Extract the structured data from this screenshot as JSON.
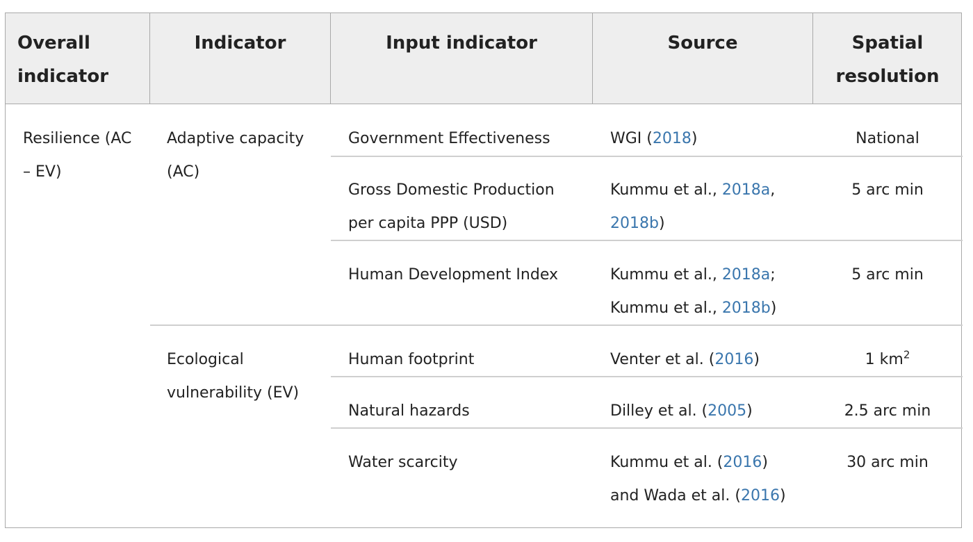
{
  "table": {
    "headers": {
      "overall_line1": "Overall",
      "overall_line2": "indicator",
      "indicator": "Indicator",
      "input_indicator": "Input indicator",
      "source": "Source",
      "spatial_line1": "Spatial",
      "spatial_line2": "resolution"
    },
    "overall": {
      "line1": "Resilience (AC",
      "line2": "– EV)"
    },
    "indicators": {
      "ac_line1": "Adaptive capacity",
      "ac_line2": "(AC)",
      "ev_line1": "Ecological",
      "ev_line2": "vulnerability (EV)"
    },
    "rows": [
      {
        "input": "Government Effectiveness",
        "source_pre": "WGI (",
        "source_link": "2018",
        "source_post": ")",
        "resolution": "National"
      },
      {
        "input_line1": "Gross Domestic Production",
        "input_line2": "per capita PPP (USD)",
        "source_pre": "Kummu et al., ",
        "source_link1": "2018a",
        "source_mid": ",",
        "source_link2": "2018b",
        "source_post": ")",
        "resolution": "5 arc min"
      },
      {
        "input": "Human Development Index",
        "source_pre1": "Kummu et al., ",
        "source_link1": "2018a",
        "source_mid": ";",
        "source_pre2": "Kummu et al., ",
        "source_link2": "2018b",
        "source_post": ")",
        "resolution": "5 arc min"
      },
      {
        "input": "Human footprint",
        "source_pre": "Venter et al. (",
        "source_link": "2016",
        "source_post": ")",
        "resolution": "1 km",
        "resolution_sup": "2"
      },
      {
        "input": "Natural hazards",
        "source_pre": "Dilley et al. (",
        "source_link": "2005",
        "source_post": ")",
        "resolution": "2.5 arc min"
      },
      {
        "input": "Water scarcity",
        "source_pre1": "Kummu et al. (",
        "source_link1": "2016",
        "source_post1": ")",
        "source_pre2": "and Wada et al. (",
        "source_link2": "2016",
        "source_post2": ")",
        "resolution": "30 arc min"
      }
    ]
  },
  "colors": {
    "header_bg": "#eeeeee",
    "border": "#a9a9a9",
    "row_rule": "#cfcfcf",
    "link": "#3a76ad",
    "text": "#222222"
  }
}
